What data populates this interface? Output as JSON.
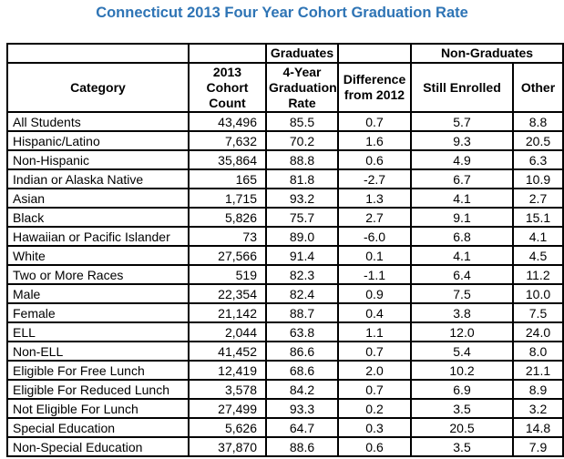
{
  "title": {
    "text": "Connecticut 2013 Four Year Cohort Graduation Rate",
    "color": "#2E74B5"
  },
  "table": {
    "group_headers": {
      "graduates": "Graduates",
      "non_graduates": "Non-Graduates"
    },
    "column_headers": {
      "category": "Category",
      "cohort_count": "2013\nCohort\nCount",
      "graduation_rate": "4-Year\nGraduation\nRate",
      "difference": "Difference\nfrom 2012",
      "still_enrolled": "Still Enrolled",
      "other": "Other"
    },
    "rows": [
      {
        "category": "All Students",
        "cohort_count": "43,496",
        "graduation_rate": "85.5",
        "difference": "0.7",
        "still_enrolled": "5.7",
        "other": "8.8"
      },
      {
        "category": "Hispanic/Latino",
        "cohort_count": "7,632",
        "graduation_rate": "70.2",
        "difference": "1.6",
        "still_enrolled": "9.3",
        "other": "20.5"
      },
      {
        "category": "Non-Hispanic",
        "cohort_count": "35,864",
        "graduation_rate": "88.8",
        "difference": "0.6",
        "still_enrolled": "4.9",
        "other": "6.3"
      },
      {
        "category": "Indian or Alaska Native",
        "cohort_count": "165",
        "graduation_rate": "81.8",
        "difference": "-2.7",
        "still_enrolled": "6.7",
        "other": "10.9"
      },
      {
        "category": "Asian",
        "cohort_count": "1,715",
        "graduation_rate": "93.2",
        "difference": "1.3",
        "still_enrolled": "4.1",
        "other": "2.7"
      },
      {
        "category": "Black",
        "cohort_count": "5,826",
        "graduation_rate": "75.7",
        "difference": "2.7",
        "still_enrolled": "9.1",
        "other": "15.1"
      },
      {
        "category": "Hawaiian or Pacific Islander",
        "cohort_count": "73",
        "graduation_rate": "89.0",
        "difference": "-6.0",
        "still_enrolled": "6.8",
        "other": "4.1"
      },
      {
        "category": "White",
        "cohort_count": "27,566",
        "graduation_rate": "91.4",
        "difference": "0.1",
        "still_enrolled": "4.1",
        "other": "4.5"
      },
      {
        "category": "Two or More Races",
        "cohort_count": "519",
        "graduation_rate": "82.3",
        "difference": "-1.1",
        "still_enrolled": "6.4",
        "other": "11.2"
      },
      {
        "category": "Male",
        "cohort_count": "22,354",
        "graduation_rate": "82.4",
        "difference": "0.9",
        "still_enrolled": "7.5",
        "other": "10.0"
      },
      {
        "category": "Female",
        "cohort_count": "21,142",
        "graduation_rate": "88.7",
        "difference": "0.4",
        "still_enrolled": "3.8",
        "other": "7.5"
      },
      {
        "category": "ELL",
        "cohort_count": "2,044",
        "graduation_rate": "63.8",
        "difference": "1.1",
        "still_enrolled": "12.0",
        "other": "24.0"
      },
      {
        "category": "Non-ELL",
        "cohort_count": "41,452",
        "graduation_rate": "86.6",
        "difference": "0.7",
        "still_enrolled": "5.4",
        "other": "8.0"
      },
      {
        "category": "Eligible For Free Lunch",
        "cohort_count": "12,419",
        "graduation_rate": "68.6",
        "difference": "2.0",
        "still_enrolled": "10.2",
        "other": "21.1"
      },
      {
        "category": "Eligible For Reduced Lunch",
        "cohort_count": "3,578",
        "graduation_rate": "84.2",
        "difference": "0.7",
        "still_enrolled": "6.9",
        "other": "8.9"
      },
      {
        "category": "Not Eligible For Lunch",
        "cohort_count": "27,499",
        "graduation_rate": "93.3",
        "difference": "0.2",
        "still_enrolled": "3.5",
        "other": "3.2"
      },
      {
        "category": "Special Education",
        "cohort_count": "5,626",
        "graduation_rate": "64.7",
        "difference": "0.3",
        "still_enrolled": "20.5",
        "other": "14.8"
      },
      {
        "category": "Non-Special Education",
        "cohort_count": "37,870",
        "graduation_rate": "88.6",
        "difference": "0.6",
        "still_enrolled": "3.5",
        "other": "7.9"
      }
    ]
  }
}
